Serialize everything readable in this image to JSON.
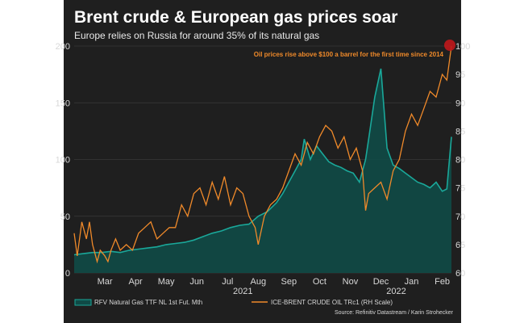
{
  "chart_data": {
    "type": "line",
    "title": "Brent crude & European gas prices soar",
    "subtitle": "Europe relies on Russia for around 35% of its natural gas",
    "annotation": "Oil prices rise above $100 a barrel for the first time since 2014",
    "source": "Source: Refinitiv Datastream / Karin Strohecker",
    "x_tick_labels": [
      "Mar",
      "Apr",
      "May",
      "Jun",
      "Jul",
      "Aug",
      "Sep",
      "Oct",
      "Nov",
      "Dec",
      "Jan",
      "Feb"
    ],
    "year_labels": [
      {
        "label": "2021",
        "month": 7.5
      },
      {
        "label": "2022",
        "month": 12.5
      }
    ],
    "xlim": [
      2.0,
      14.3
    ],
    "left_axis": {
      "ylim": [
        0,
        200
      ],
      "ticks": [
        0,
        50,
        100,
        150,
        200
      ]
    },
    "right_axis": {
      "ylim": [
        60,
        100
      ],
      "ticks": [
        60,
        65,
        70,
        75,
        80,
        85,
        90,
        95,
        100
      ]
    },
    "colors": {
      "gas_line": "#1aa89a",
      "gas_fill": "#0f4a46",
      "oil": "#f08a2a",
      "marker": "#c0171b",
      "background": "#1f1f1f"
    },
    "series": [
      {
        "name": "RFV Natural Gas TTF NL 1st Fut. Mth",
        "axis": "left",
        "x": [
          2.0,
          2.3,
          2.6,
          2.9,
          3.2,
          3.5,
          3.8,
          4.1,
          4.4,
          4.7,
          5.0,
          5.3,
          5.6,
          5.9,
          6.2,
          6.5,
          6.8,
          7.1,
          7.4,
          7.7,
          8.0,
          8.3,
          8.6,
          8.8,
          9.0,
          9.2,
          9.4,
          9.5,
          9.7,
          9.9,
          10.1,
          10.3,
          10.5,
          10.7,
          10.9,
          11.1,
          11.3,
          11.5,
          11.6,
          11.8,
          12.0,
          12.2,
          12.4,
          12.6,
          12.8,
          13.0,
          13.2,
          13.4,
          13.6,
          13.8,
          14.0,
          14.15,
          14.3
        ],
        "values": [
          16,
          17,
          18,
          18,
          19,
          18,
          20,
          21,
          22,
          23,
          25,
          26,
          27,
          29,
          32,
          35,
          37,
          40,
          42,
          43,
          50,
          54,
          62,
          70,
          80,
          90,
          100,
          118,
          100,
          112,
          105,
          98,
          95,
          93,
          90,
          88,
          80,
          100,
          118,
          155,
          180,
          110,
          95,
          92,
          88,
          84,
          80,
          78,
          75,
          80,
          72,
          74,
          120
        ]
      },
      {
        "name": "ICE-BRENT CRUDE OIL TRc1 (RH Scale)",
        "axis": "right",
        "x": [
          2.0,
          2.1,
          2.25,
          2.4,
          2.5,
          2.6,
          2.75,
          2.85,
          3.0,
          3.1,
          3.2,
          3.35,
          3.5,
          3.7,
          3.9,
          4.1,
          4.3,
          4.5,
          4.7,
          4.9,
          5.1,
          5.3,
          5.5,
          5.7,
          5.9,
          6.1,
          6.3,
          6.5,
          6.7,
          6.9,
          7.1,
          7.3,
          7.5,
          7.7,
          7.9,
          8.0,
          8.2,
          8.4,
          8.6,
          8.8,
          9.0,
          9.2,
          9.4,
          9.6,
          9.8,
          10.0,
          10.2,
          10.4,
          10.6,
          10.8,
          11.0,
          11.2,
          11.4,
          11.5,
          11.6,
          11.8,
          12.0,
          12.2,
          12.4,
          12.6,
          12.8,
          13.0,
          13.2,
          13.4,
          13.6,
          13.8,
          14.0,
          14.15,
          14.3
        ],
        "values": [
          67,
          63,
          69,
          66,
          69,
          65,
          62,
          64,
          63,
          62,
          64,
          66,
          64,
          65,
          64,
          67,
          68,
          69,
          66,
          67,
          68,
          68,
          72,
          70,
          74,
          75,
          72,
          76,
          73,
          77,
          72,
          75,
          74,
          70,
          68,
          65,
          70,
          72,
          73,
          75,
          78,
          81,
          79,
          83,
          81,
          84,
          86,
          85,
          82,
          84,
          80,
          82,
          78,
          71,
          74,
          75,
          76,
          73,
          78,
          80,
          85,
          88,
          86,
          89,
          92,
          91,
          95,
          94,
          100
        ]
      }
    ]
  }
}
